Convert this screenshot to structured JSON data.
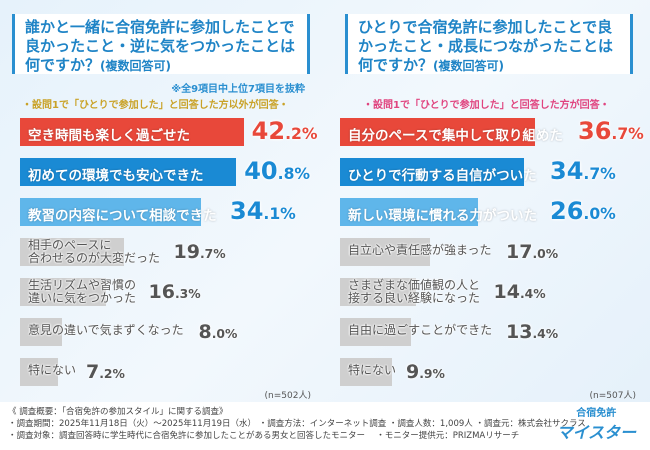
{
  "chart_data": [
    {
      "type": "bar",
      "orientation": "horizontal",
      "title": "誰かと一緒に合宿免許に参加したことで良かったこと・逆に気をつかったことは何ですか？",
      "title_suffix": "(複数回答可)",
      "note": "※全9項目中上位7項目を抜粋",
      "subtitle": "・設問1で「ひとりで参加した」と回答した方以外が回答・",
      "categories": [
        "空き時間も楽しく過ごせた",
        "初めての環境でも安心できた",
        "教習の内容について相談できた",
        "相手のペースに\n合わせるのが大変だった",
        "生活リズムや習慣の\n違いに気をつかった",
        "意見の違いで気まずくなった",
        "特にない"
      ],
      "values": [
        42.2,
        40.8,
        34.1,
        19.7,
        16.3,
        8.0,
        7.2
      ],
      "unit": "%",
      "n": "(n=502人)"
    },
    {
      "type": "bar",
      "orientation": "horizontal",
      "title": "ひとりで合宿免許に参加したことで良かったこと・成長につながったことは何ですか？",
      "title_suffix": "(複数回答可)",
      "subtitle": "・設問1で「ひとりで参加した」と回答した方が回答・",
      "categories": [
        "自分のペースで集中して取り組めた",
        "ひとりで行動する自信がついた",
        "新しい環境に慣れる力がついた",
        "自立心や責任感が強まった",
        "さまざまな価値観の人と\n接する良い経験になった",
        "自由に過ごすことができた",
        "特にない"
      ],
      "values": [
        36.7,
        34.7,
        26.0,
        17.0,
        14.4,
        13.4,
        9.9
      ],
      "unit": "%",
      "n": "(n=507人)"
    }
  ],
  "colors": {
    "rank1": "#e8483a",
    "rank2": "#1a8ad4",
    "rank3": "#5fb6ea",
    "other": "#cfcfcf",
    "left_subtitle": "#c9a227",
    "right_subtitle": "#e0447f"
  },
  "footer": {
    "line1": "《 調査概要：「合宿免許の参加スタイル」に関する調査》",
    "line2": "・調査期間：2025年11月18日（火）～2025年11月19日（水） ・調査方法：インターネット調査 ・調査人数：1,009人 ・調査元：株式会社サクラス",
    "line3": "・調査対象：調査回答時に学生時代に合宿免許に参加したことがある男女と回答したモニター　 ・モニター提供元：PRIZMAリサーチ"
  },
  "logo": {
    "line1": "合宿免許",
    "line2": "マイスター"
  }
}
